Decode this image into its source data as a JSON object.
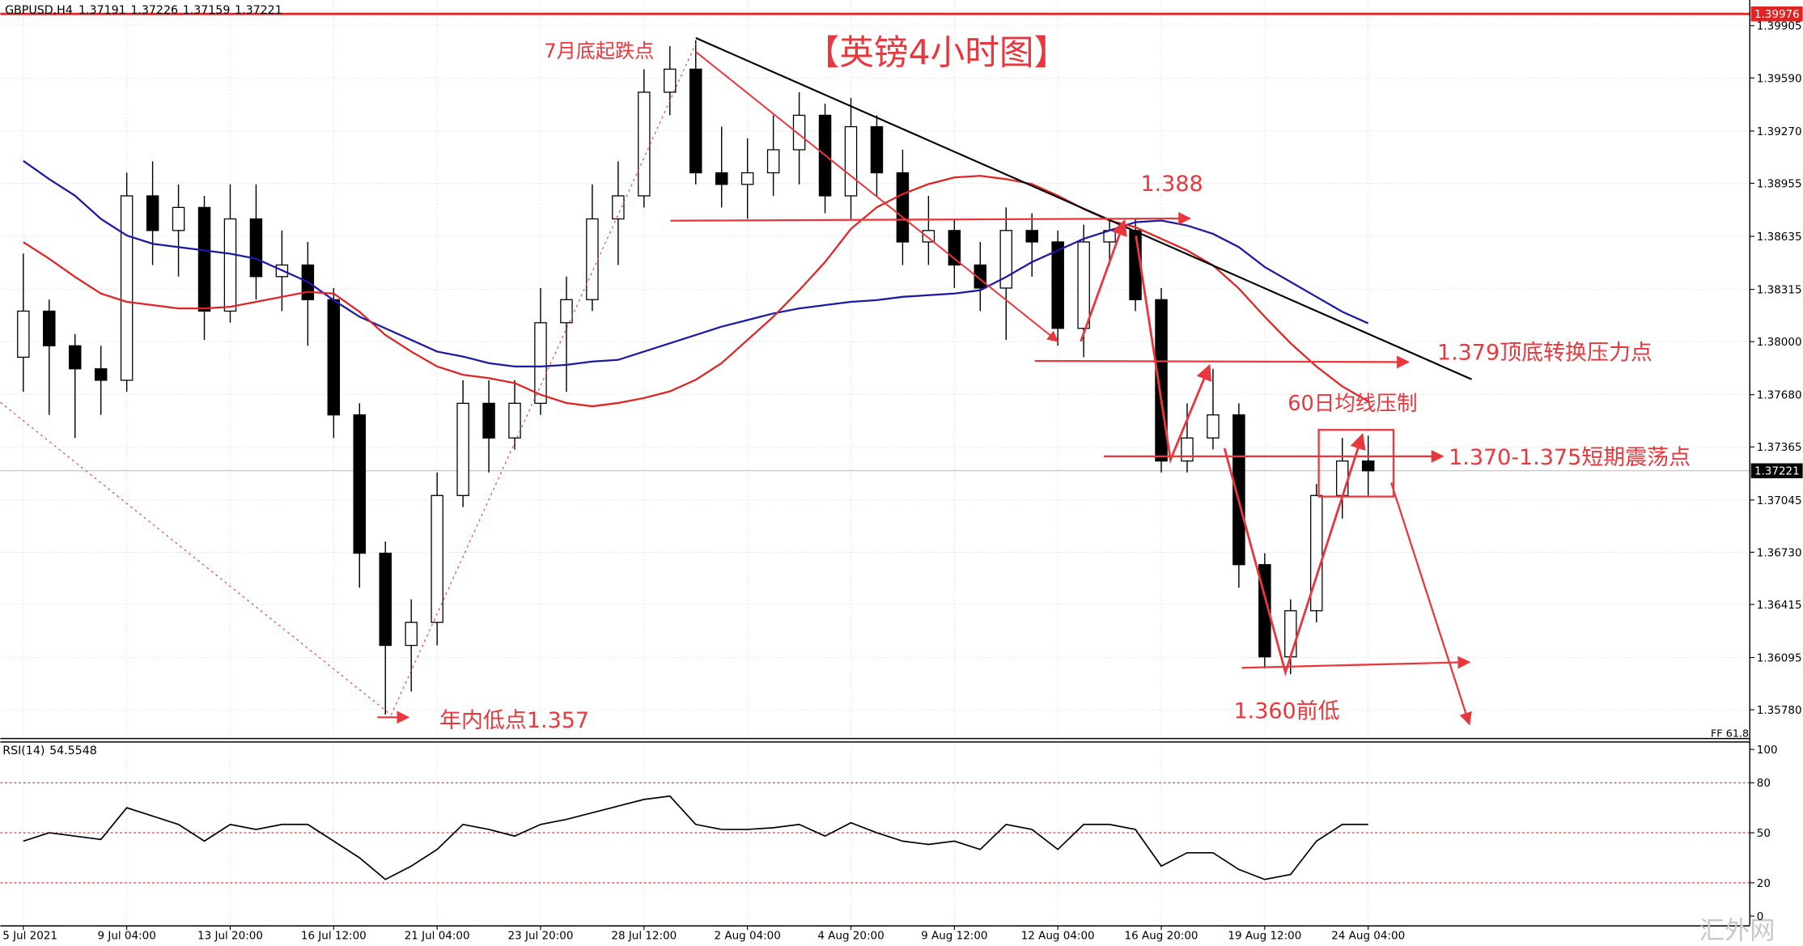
{
  "chart_data": [
    {
      "type": "candlestick",
      "symbol": "GBPUSD,H4",
      "header_values": [
        1.37191,
        1.37226,
        1.37159,
        1.37221
      ],
      "title": "【英镑4小时图】",
      "categories": [
        "5 Jul 2021",
        null,
        null,
        null,
        "9 Jul 04:00",
        null,
        null,
        null,
        "13 Jul 20:00",
        null,
        null,
        null,
        "16 Jul 12:00",
        null,
        null,
        null,
        "21 Jul 04:00",
        null,
        null,
        null,
        "23 Jul 20:00",
        null,
        null,
        null,
        "28 Jul 12:00",
        null,
        null,
        null,
        "2 Aug 04:00",
        null,
        null,
        null,
        "4 Aug 20:00",
        null,
        null,
        null,
        "9 Aug 12:00",
        null,
        null,
        null,
        "12 Aug 04:00",
        null,
        null,
        null,
        "16 Aug 20:00",
        null,
        null,
        null,
        "19 Aug 12:00",
        null,
        null,
        null,
        "24 Aug 04:00"
      ],
      "open": [
        1.37906,
        1.38184,
        1.37975,
        1.37836,
        1.37767,
        1.38879,
        1.3867,
        1.38809,
        1.38184,
        1.3874,
        1.38392,
        1.38462,
        1.38253,
        1.37558,
        1.36724,
        1.36168,
        1.36307,
        1.37072,
        1.37628,
        1.37419,
        1.37628,
        1.38114,
        1.38253,
        1.3874,
        1.38879,
        1.39504,
        1.39643,
        1.39018,
        1.38948,
        1.39018,
        1.39157,
        1.39365,
        1.38879,
        1.39296,
        1.39018,
        1.38601,
        1.3867,
        1.38462,
        1.38323,
        1.3867,
        1.38601,
        1.3808,
        1.38601,
        1.3867,
        1.38253,
        1.3728,
        1.37419,
        1.37558,
        1.36655,
        1.36099,
        1.36377,
        1.37072,
        1.3728
      ],
      "high": [
        1.38531,
        1.38253,
        1.38045,
        1.37975,
        1.39018,
        1.39087,
        1.38948,
        1.38879,
        1.38948,
        1.38948,
        1.3867,
        1.38601,
        1.38323,
        1.37628,
        1.36794,
        1.36446,
        1.37211,
        1.37767,
        1.37767,
        1.37767,
        1.38323,
        1.38392,
        1.38948,
        1.39087,
        1.39643,
        1.39782,
        1.39817,
        1.39296,
        1.39226,
        1.39365,
        1.39504,
        1.39435,
        1.39469,
        1.39365,
        1.39157,
        1.38879,
        1.3874,
        1.38601,
        1.38809,
        1.38774,
        1.3867,
        1.38705,
        1.3874,
        1.3874,
        1.38323,
        1.37628,
        1.37836,
        1.37628,
        1.36724,
        1.36446,
        1.37141,
        1.37419,
        1.37433
      ],
      "low": [
        1.37697,
        1.37558,
        1.37419,
        1.37558,
        1.37697,
        1.38462,
        1.38392,
        1.3801,
        1.38114,
        1.38253,
        1.38184,
        1.37975,
        1.37419,
        1.36516,
        1.35751,
        1.3589,
        1.36168,
        1.37002,
        1.37211,
        1.3735,
        1.37558,
        1.37697,
        1.38184,
        1.38462,
        1.38809,
        1.39365,
        1.38948,
        1.38809,
        1.3874,
        1.38879,
        1.38948,
        1.38774,
        1.3874,
        1.38879,
        1.38462,
        1.38462,
        1.38323,
        1.38184,
        1.3801,
        1.38392,
        1.37975,
        1.37906,
        1.38462,
        1.38184,
        1.37211,
        1.37211,
        1.3735,
        1.36516,
        1.36029,
        1.35994,
        1.36307,
        1.36933,
        1.37072
      ],
      "close": [
        1.38184,
        1.37975,
        1.37836,
        1.37767,
        1.38879,
        1.3867,
        1.38809,
        1.38184,
        1.3874,
        1.38392,
        1.38462,
        1.38253,
        1.37558,
        1.36724,
        1.36168,
        1.36307,
        1.37072,
        1.37628,
        1.37419,
        1.37628,
        1.38114,
        1.38253,
        1.3874,
        1.38879,
        1.39504,
        1.39643,
        1.39018,
        1.38948,
        1.39018,
        1.39157,
        1.39365,
        1.38879,
        1.39296,
        1.39018,
        1.38601,
        1.3867,
        1.38462,
        1.38323,
        1.3867,
        1.38601,
        1.3808,
        1.38601,
        1.3867,
        1.38253,
        1.3728,
        1.37419,
        1.37558,
        1.36655,
        1.36099,
        1.36377,
        1.37072,
        1.3728,
        1.37221
      ],
      "moving_averages": [
        {
          "color": "#1a1aa6",
          "values": [
            1.3909,
            1.3898,
            1.3888,
            1.3874,
            1.3864,
            1.3859,
            1.3857,
            1.3855,
            1.3853,
            1.385,
            1.3843,
            1.3836,
            1.3825,
            1.3815,
            1.3808,
            1.3801,
            1.3794,
            1.3791,
            1.3787,
            1.3785,
            1.3785,
            1.3786,
            1.3788,
            1.3789,
            1.3794,
            1.3799,
            1.3804,
            1.3809,
            1.3813,
            1.3817,
            1.382,
            1.3822,
            1.3824,
            1.3825,
            1.3827,
            1.3828,
            1.3829,
            1.3831,
            1.3839,
            1.3848,
            1.3855,
            1.3862,
            1.3867,
            1.3872,
            1.3873,
            1.387,
            1.3865,
            1.3857,
            1.3845,
            1.3836,
            1.3827,
            1.3818,
            1.3811
          ]
        },
        {
          "color": "#e02424",
          "values": [
            1.386,
            1.385,
            1.3839,
            1.3829,
            1.3824,
            1.3822,
            1.382,
            1.382,
            1.3821,
            1.3824,
            1.3827,
            1.383,
            1.3829,
            1.3818,
            1.3804,
            1.3794,
            1.3785,
            1.378,
            1.3778,
            1.3775,
            1.3768,
            1.3763,
            1.3761,
            1.3763,
            1.3766,
            1.377,
            1.3777,
            1.3787,
            1.3801,
            1.3815,
            1.3831,
            1.3848,
            1.3868,
            1.3881,
            1.3889,
            1.3895,
            1.3899,
            1.39,
            1.3898,
            1.3895,
            1.3888,
            1.388,
            1.3873,
            1.3869,
            1.3862,
            1.3855,
            1.3846,
            1.3832,
            1.3815,
            1.3799,
            1.3785,
            1.3773,
            1.3764
          ]
        }
      ],
      "top_line": 1.39976,
      "current_price": 1.37221,
      "ylim": [
        1.3561,
        1.4006
      ],
      "yticks": [
        1.39905,
        {
          "value": 1.3959,
          "label": "1.39590"
        },
        {
          "value": 1.3927,
          "label": "1.39270"
        },
        1.38955,
        1.38635,
        1.38315,
        {
          "value": 1.38,
          "label": "1.38000"
        },
        {
          "value": 1.3768,
          "label": "1.37680"
        },
        1.37365,
        1.37045,
        {
          "value": 1.3673,
          "label": "1.36730"
        },
        1.36415,
        1.36095,
        {
          "value": 1.3578,
          "label": "1.35780"
        }
      ],
      "grid": true,
      "annotations": [
        "7月底起跌点",
        "1.388",
        "1.379顶底转换压力点",
        "60日均线压制",
        "1.370-1.375短期震荡点",
        "1.360前低",
        "年内低点1.357"
      ],
      "footnote": "FF 61.8",
      "watermark": "汇外网"
    },
    {
      "type": "line",
      "title": "RSI(14)",
      "last_value": 54.5548,
      "color": "#000000",
      "values": [
        45,
        50,
        48,
        46,
        65,
        60,
        55,
        45,
        55,
        52,
        55,
        55,
        45,
        35,
        22,
        30,
        40,
        55,
        52,
        48,
        55,
        58,
        62,
        66,
        70,
        72,
        55,
        52,
        52,
        53,
        55,
        48,
        56,
        50,
        45,
        43,
        45,
        40,
        55,
        52,
        40,
        55,
        55,
        52,
        30,
        38,
        38,
        28,
        22,
        25,
        45,
        55,
        55
      ],
      "levels": [
        80,
        50,
        20
      ],
      "level_color": "#e02424",
      "ylim": [
        -5.5,
        104.8
      ],
      "yticks": [
        100,
        80,
        50,
        20,
        0
      ]
    }
  ]
}
